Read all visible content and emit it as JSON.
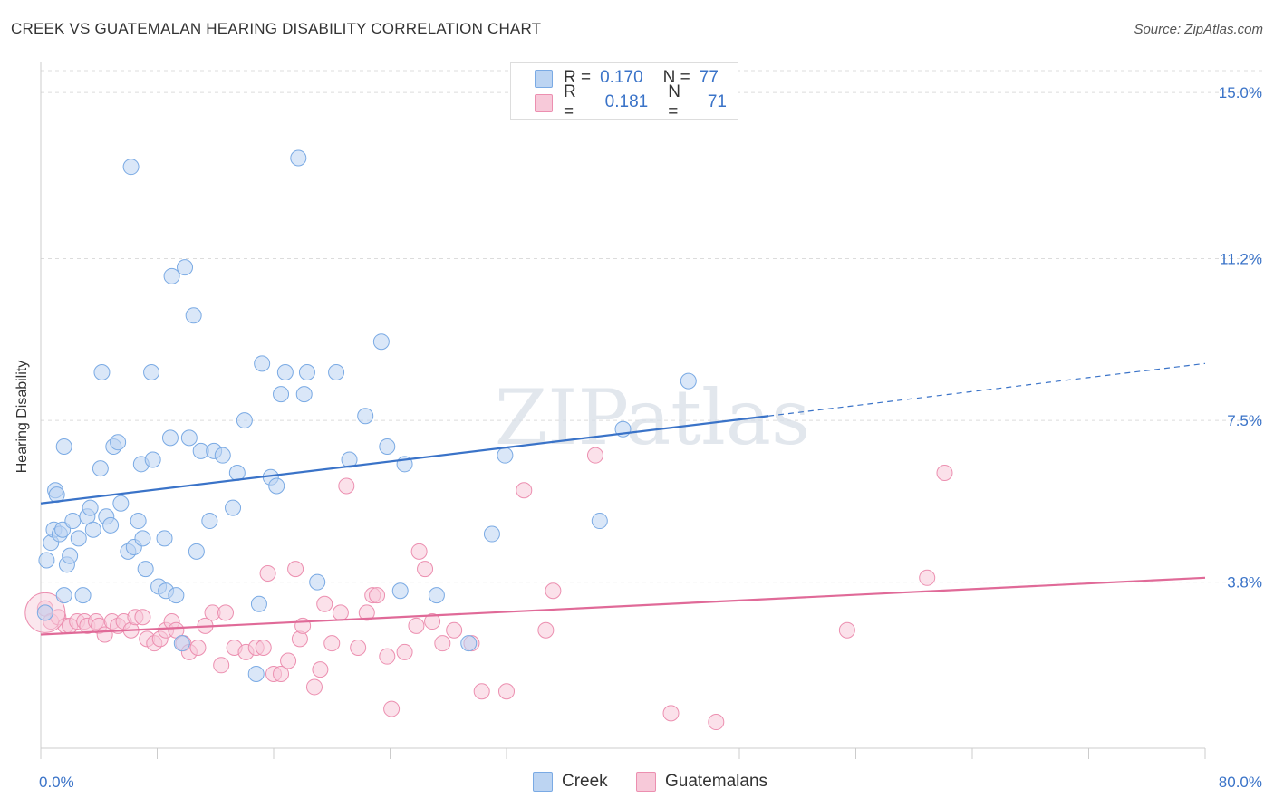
{
  "title": "CREEK VS GUATEMALAN HEARING DISABILITY CORRELATION CHART",
  "source": "Source: ZipAtlas.com",
  "watermark": "ZIPatlas",
  "legend": {
    "rows": [
      {
        "r_label": "R =",
        "r_value": "0.170",
        "n_label": "N =",
        "n_value": "77"
      },
      {
        "r_label": "R =",
        "r_value": "0.181",
        "n_label": "N =",
        "n_value": "71"
      }
    ]
  },
  "bottom_legend": [
    "Creek",
    "Guatemalans"
  ],
  "chart_data": {
    "type": "scatter",
    "xlabel": "",
    "ylabel": "Hearing Disability",
    "xlim": [
      0,
      80
    ],
    "ylim": [
      0,
      15.5
    ],
    "x_tick_labels": [
      "0.0%",
      "80.0%"
    ],
    "y_tick_labels": [
      "3.8%",
      "7.5%",
      "11.2%",
      "15.0%"
    ],
    "y_ticks": [
      3.8,
      7.5,
      11.2,
      15.0
    ],
    "grid": "horizontal dashed",
    "legend_position": "top-center",
    "series": [
      {
        "name": "Creek",
        "color": "#7aaae4",
        "fill": "#bcd4f2",
        "R": 0.17,
        "N": 77,
        "trend": {
          "x0": 0,
          "y0": 5.6,
          "x1": 50,
          "y1": 7.6,
          "x_end_dashed": 80,
          "y_end_dashed": 8.8
        },
        "points": [
          [
            0.3,
            3.1
          ],
          [
            0.4,
            4.3
          ],
          [
            0.7,
            4.7
          ],
          [
            0.9,
            5.0
          ],
          [
            1.0,
            5.9
          ],
          [
            1.1,
            5.8
          ],
          [
            1.3,
            4.9
          ],
          [
            1.5,
            5.0
          ],
          [
            1.6,
            6.9
          ],
          [
            1.6,
            3.5
          ],
          [
            1.8,
            4.2
          ],
          [
            2.0,
            4.4
          ],
          [
            2.2,
            5.2
          ],
          [
            2.6,
            4.8
          ],
          [
            2.9,
            3.5
          ],
          [
            3.2,
            5.3
          ],
          [
            3.4,
            5.5
          ],
          [
            3.6,
            5.0
          ],
          [
            4.1,
            6.4
          ],
          [
            4.2,
            8.6
          ],
          [
            4.5,
            5.3
          ],
          [
            4.8,
            5.1
          ],
          [
            5.0,
            6.9
          ],
          [
            5.3,
            7.0
          ],
          [
            5.5,
            5.6
          ],
          [
            6.0,
            4.5
          ],
          [
            6.2,
            13.3
          ],
          [
            6.4,
            4.6
          ],
          [
            6.7,
            5.2
          ],
          [
            6.9,
            6.5
          ],
          [
            7.0,
            4.8
          ],
          [
            7.2,
            4.1
          ],
          [
            7.6,
            8.6
          ],
          [
            7.7,
            6.6
          ],
          [
            8.1,
            3.7
          ],
          [
            8.5,
            4.8
          ],
          [
            8.6,
            3.6
          ],
          [
            8.9,
            7.1
          ],
          [
            9.0,
            10.8
          ],
          [
            9.3,
            3.5
          ],
          [
            9.7,
            2.4
          ],
          [
            9.9,
            11.0
          ],
          [
            10.2,
            7.1
          ],
          [
            10.5,
            9.9
          ],
          [
            10.7,
            4.5
          ],
          [
            11.0,
            6.8
          ],
          [
            11.6,
            5.2
          ],
          [
            11.9,
            6.8
          ],
          [
            12.5,
            6.7
          ],
          [
            13.2,
            5.5
          ],
          [
            13.5,
            6.3
          ],
          [
            14.0,
            7.5
          ],
          [
            14.8,
            1.7
          ],
          [
            15.0,
            3.3
          ],
          [
            15.2,
            8.8
          ],
          [
            15.8,
            6.2
          ],
          [
            16.2,
            6.0
          ],
          [
            16.5,
            8.1
          ],
          [
            16.8,
            8.6
          ],
          [
            17.7,
            13.5
          ],
          [
            18.1,
            8.1
          ],
          [
            18.3,
            8.6
          ],
          [
            19.0,
            3.8
          ],
          [
            20.3,
            8.6
          ],
          [
            21.2,
            6.6
          ],
          [
            22.3,
            7.6
          ],
          [
            23.4,
            9.3
          ],
          [
            23.8,
            6.9
          ],
          [
            24.7,
            3.6
          ],
          [
            25.0,
            6.5
          ],
          [
            27.2,
            3.5
          ],
          [
            29.4,
            2.4
          ],
          [
            31.0,
            4.9
          ],
          [
            31.9,
            6.7
          ],
          [
            38.4,
            5.2
          ],
          [
            40.0,
            7.3
          ],
          [
            44.5,
            8.4
          ]
        ]
      },
      {
        "name": "Guatemalans",
        "color": "#ec8fb0",
        "fill": "#f7c9d9",
        "R": 0.181,
        "N": 71,
        "trend": {
          "x0": 0,
          "y0": 2.6,
          "x1": 80,
          "y1": 3.9
        },
        "points": [
          [
            0.3,
            3.2
          ],
          [
            0.7,
            2.9
          ],
          [
            1.2,
            3.0
          ],
          [
            1.7,
            2.8
          ],
          [
            2.0,
            2.8
          ],
          [
            2.5,
            2.9
          ],
          [
            3.0,
            2.9
          ],
          [
            3.2,
            2.8
          ],
          [
            3.8,
            2.9
          ],
          [
            4.0,
            2.8
          ],
          [
            4.4,
            2.6
          ],
          [
            4.9,
            2.9
          ],
          [
            5.3,
            2.8
          ],
          [
            5.7,
            2.9
          ],
          [
            6.2,
            2.7
          ],
          [
            6.5,
            3.0
          ],
          [
            7.0,
            3.0
          ],
          [
            7.3,
            2.5
          ],
          [
            7.8,
            2.4
          ],
          [
            8.2,
            2.5
          ],
          [
            8.6,
            2.7
          ],
          [
            9.0,
            2.9
          ],
          [
            9.3,
            2.7
          ],
          [
            9.8,
            2.4
          ],
          [
            10.2,
            2.2
          ],
          [
            10.8,
            2.3
          ],
          [
            11.3,
            2.8
          ],
          [
            11.8,
            3.1
          ],
          [
            12.4,
            1.9
          ],
          [
            12.7,
            3.1
          ],
          [
            13.3,
            2.3
          ],
          [
            14.1,
            2.2
          ],
          [
            14.8,
            2.3
          ],
          [
            15.3,
            2.3
          ],
          [
            15.6,
            4.0
          ],
          [
            16.0,
            1.7
          ],
          [
            16.5,
            1.7
          ],
          [
            17.0,
            2.0
          ],
          [
            17.5,
            4.1
          ],
          [
            17.8,
            2.5
          ],
          [
            18.0,
            2.8
          ],
          [
            18.8,
            1.4
          ],
          [
            19.2,
            1.8
          ],
          [
            19.5,
            3.3
          ],
          [
            20.0,
            2.4
          ],
          [
            20.6,
            3.1
          ],
          [
            21.0,
            6.0
          ],
          [
            21.8,
            2.3
          ],
          [
            22.4,
            3.1
          ],
          [
            22.8,
            3.5
          ],
          [
            23.1,
            3.5
          ],
          [
            23.8,
            2.1
          ],
          [
            24.1,
            0.9
          ],
          [
            25.0,
            2.2
          ],
          [
            25.8,
            2.8
          ],
          [
            26.0,
            4.5
          ],
          [
            26.4,
            4.1
          ],
          [
            26.9,
            2.9
          ],
          [
            27.6,
            2.4
          ],
          [
            28.4,
            2.7
          ],
          [
            29.6,
            2.4
          ],
          [
            30.3,
            1.3
          ],
          [
            32.0,
            1.3
          ],
          [
            33.2,
            5.9
          ],
          [
            34.7,
            2.7
          ],
          [
            35.2,
            3.6
          ],
          [
            38.1,
            6.7
          ],
          [
            43.3,
            0.8
          ],
          [
            46.4,
            0.6
          ],
          [
            55.4,
            2.7
          ],
          [
            60.9,
            3.9
          ],
          [
            62.1,
            6.3
          ]
        ]
      }
    ]
  }
}
